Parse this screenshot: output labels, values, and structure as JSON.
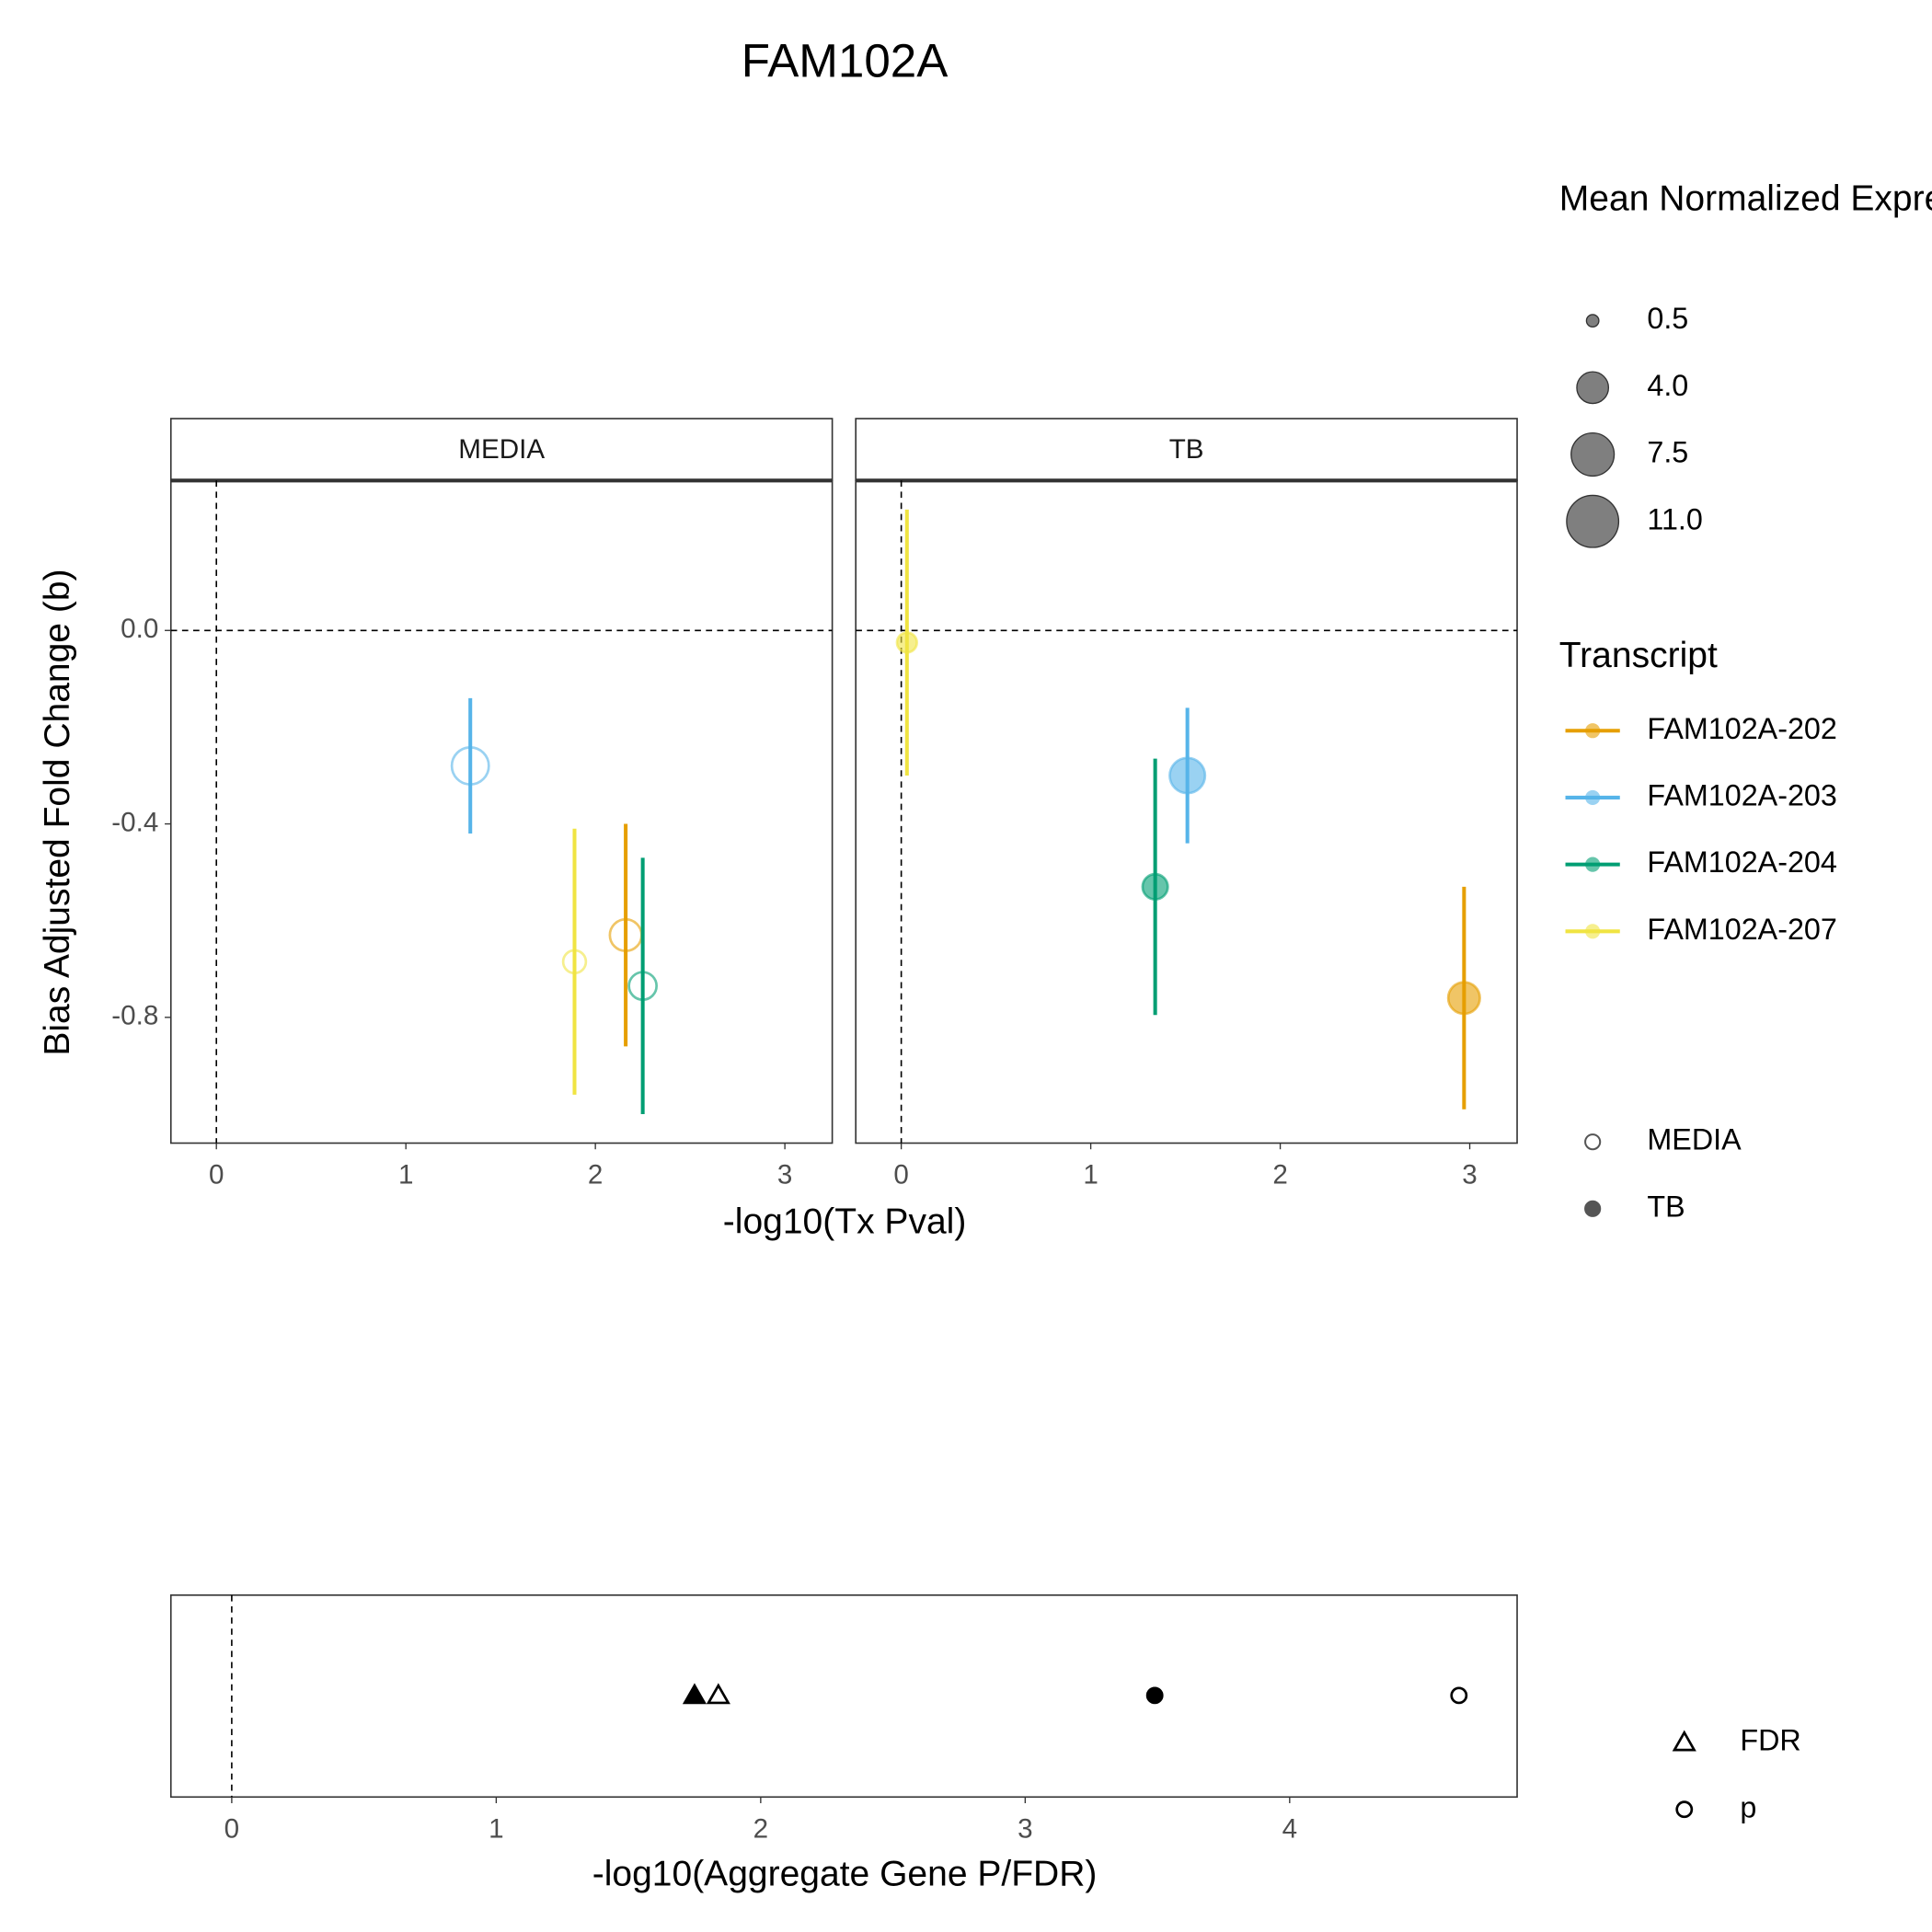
{
  "chart_data": [
    {
      "type": "scatter",
      "title": "FAM102A",
      "xlabel": "-log10(Tx Pval)",
      "ylabel": "Bias Adjusted Fold Change (b)",
      "panels": [
        "MEDIA",
        "TB"
      ],
      "panel_filled": [
        false,
        true
      ],
      "xlim": [
        -0.24,
        3.25
      ],
      "xticks": [
        0,
        1,
        2,
        3
      ],
      "ylim": [
        -1.06,
        0.31
      ],
      "yticks": [
        {
          "value": 0,
          "label": "0.0"
        },
        {
          "value": -0.4,
          "label": "-0.4"
        },
        {
          "value": -0.8,
          "label": "-0.8"
        }
      ],
      "size_legend": {
        "title": "Mean Normalized Expression",
        "values": [
          0.5,
          {
            "value": 4,
            "label": "4.0"
          },
          7.5,
          {
            "value": 11,
            "label": "11.0"
          }
        ]
      },
      "color_legend_title": "Transcript",
      "series": [
        {
          "name": "FAM102A-202",
          "color": "#E69F00",
          "x": [
            2.16,
            2.97
          ],
          "values": [
            -0.63,
            -0.76
          ],
          "errors": [
            0.23,
            0.23
          ],
          "sizes": [
            4,
            4
          ]
        },
        {
          "name": "FAM102A-203",
          "color": "#56B4E9",
          "x": [
            1.34,
            1.51
          ],
          "values": [
            -0.28,
            -0.3
          ],
          "errors": [
            0.14,
            0.14
          ],
          "sizes": [
            5.5,
            5
          ]
        },
        {
          "name": "FAM102A-204",
          "color": "#009E73",
          "x": [
            2.25,
            1.34
          ],
          "values": [
            -0.735,
            -0.53
          ],
          "errors": [
            0.265,
            0.265
          ],
          "sizes": [
            3,
            2.5
          ]
        },
        {
          "name": "FAM102A-207",
          "color": "#F0E442",
          "x": [
            1.89,
            0.03
          ],
          "values": [
            -0.685,
            -0.025
          ],
          "errors": [
            0.275,
            0.275
          ],
          "sizes": [
            2,
            1.5
          ]
        }
      ]
    },
    {
      "type": "dotplot",
      "xlabel": "-log10(Aggregate Gene P/FDR)",
      "xlim": [
        -0.23,
        4.86
      ],
      "xticks": [
        0,
        1,
        2,
        3,
        4
      ],
      "series": [
        {
          "name": "FDR",
          "shape": "triangle",
          "values": [
            1.84,
            1.75
          ]
        },
        {
          "name": "p",
          "shape": "circle",
          "values": [
            4.64,
            3.49
          ]
        }
      ]
    }
  ]
}
